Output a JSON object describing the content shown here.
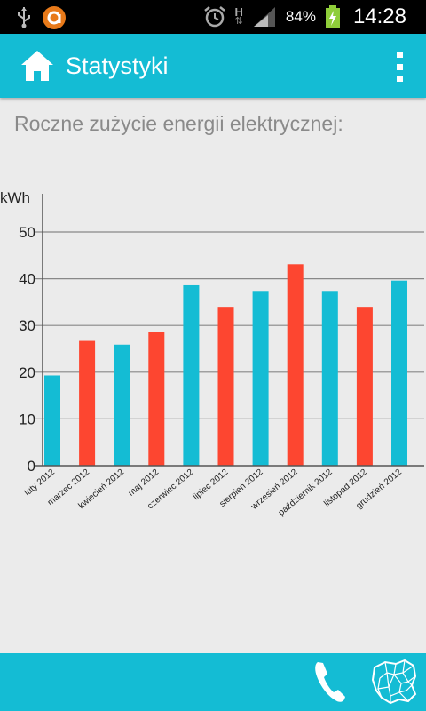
{
  "status_bar": {
    "network_type": "H",
    "battery_percent": "84%",
    "time": "14:28",
    "icons": [
      "usb-icon",
      "app-notification-icon",
      "alarm-icon",
      "network-h-icon",
      "signal-icon",
      "battery-charging-icon"
    ]
  },
  "action_bar": {
    "title": "Statystyki",
    "icons": [
      "home-icon",
      "overflow-menu-icon"
    ]
  },
  "main": {
    "heading": "Roczne zużycie energii elektrycznej:"
  },
  "chart_data": {
    "type": "bar",
    "ylabel": "kWh",
    "ylim": [
      0,
      56
    ],
    "yticks": [
      0,
      10,
      20,
      30,
      40,
      50
    ],
    "grid": true,
    "categories": [
      "luty 2012",
      "marzec 2012",
      "kwiecień 2012",
      "maj 2012",
      "czerwiec 2012",
      "lipiec 2012",
      "sierpień 2012",
      "wrzesień 2012",
      "październik 2012",
      "listopad 2012",
      "grudzień 2012"
    ],
    "values": [
      19.3,
      26.7,
      25.9,
      28.7,
      38.6,
      34.0,
      37.4,
      43.1,
      37.4,
      34.0,
      39.6
    ],
    "bar_colors": [
      "#14bcd4",
      "#fd4630",
      "#14bcd4",
      "#fd4630",
      "#14bcd4",
      "#fd4630",
      "#14bcd4",
      "#fd4630",
      "#14bcd4",
      "#fd4630",
      "#14bcd4"
    ]
  },
  "bottom_bar": {
    "icons": [
      "phone-icon",
      "poland-map-icon"
    ]
  },
  "colors": {
    "accent": "#14bcd4",
    "bar_blue": "#14bcd4",
    "bar_red": "#fd4630",
    "background": "#ebebeb"
  }
}
